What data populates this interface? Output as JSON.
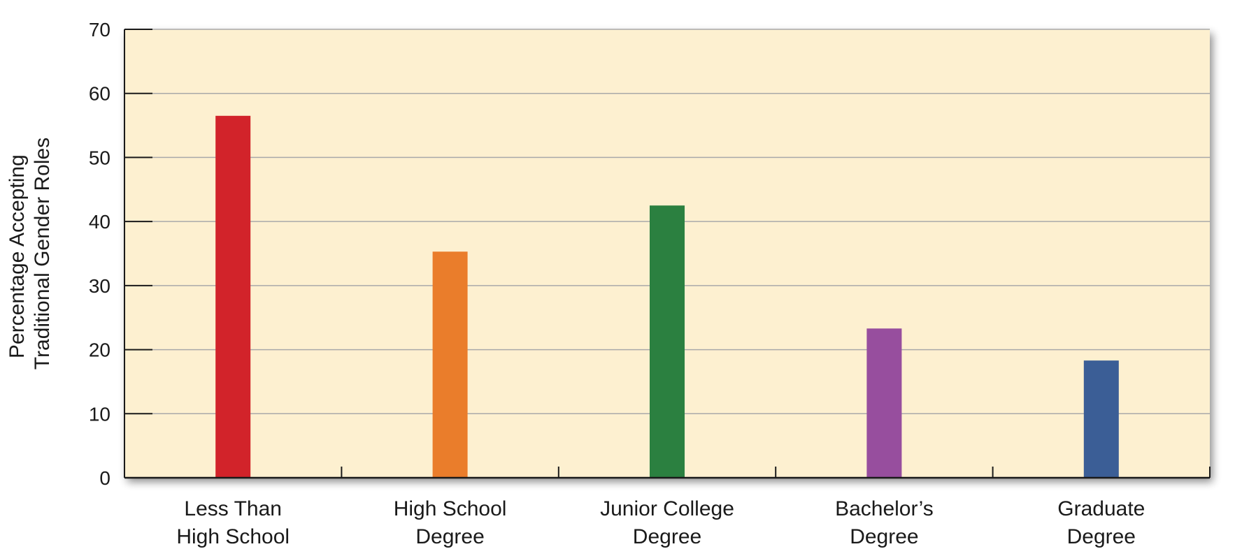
{
  "chart_data": {
    "type": "bar",
    "title": "",
    "xlabel": "",
    "ylabel_lines": [
      "Percentage Accepting",
      "Traditional Gender Roles"
    ],
    "ylim": [
      0,
      70
    ],
    "yticks": [
      0,
      10,
      20,
      30,
      40,
      50,
      60,
      70
    ],
    "grid": true,
    "legend": "none",
    "categories": [
      [
        "Less Than",
        "High School"
      ],
      [
        "High School",
        "Degree"
      ],
      [
        "Junior College",
        "Degree"
      ],
      [
        "Bachelor’s",
        "Degree"
      ],
      [
        "Graduate",
        "Degree"
      ]
    ],
    "values": [
      56.5,
      35.3,
      42.5,
      23.3,
      18.3
    ],
    "colors": [
      "#d2232a",
      "#ea7d2b",
      "#2b8040",
      "#974e9e",
      "#3b5e96"
    ],
    "plot_background": "#fdf0d0",
    "gridline_color": "#a9a9a9"
  }
}
